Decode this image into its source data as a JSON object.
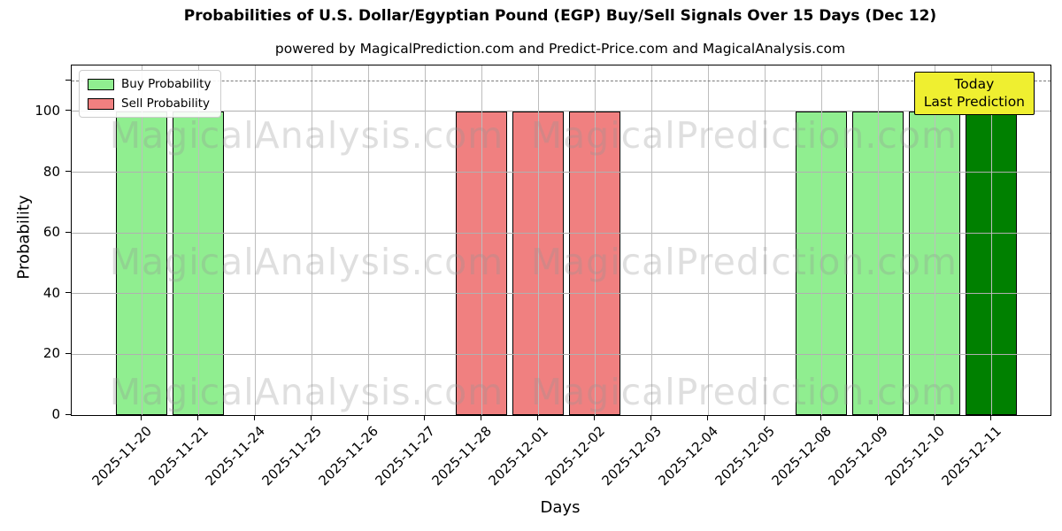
{
  "title": "Probabilities of U.S. Dollar/Egyptian Pound (EGP) Buy/Sell Signals Over 15 Days (Dec 12)",
  "subtitle": "powered by MagicalPrediction.com and Predict-Price.com and MagicalAnalysis.com",
  "axes": {
    "xlabel": "Days",
    "ylabel": "Probability",
    "yticks": [
      0,
      20,
      40,
      60,
      80,
      100
    ],
    "ylim": [
      0,
      115
    ],
    "grid": true,
    "threshold_dashed_line_y": 110
  },
  "legend": {
    "position": "upper-left",
    "items": [
      {
        "label": "Buy Probability",
        "color": "#90EE90"
      },
      {
        "label": "Sell Probability",
        "color": "#F08080"
      }
    ]
  },
  "annotation_box": {
    "lines": {
      "0": "Today",
      "1": "Last Prediction"
    },
    "bg_color": "#EFEF30",
    "border_color": "#000000",
    "position": "upper-right"
  },
  "watermarks": {
    "left_text": "MagicalAnalysis.com",
    "right_text": "MagicalPrediction.com",
    "rows": 3
  },
  "chart_data": {
    "type": "bar",
    "title": "Probabilities of U.S. Dollar/Egyptian Pound (EGP) Buy/Sell Signals Over 15 Days (Dec 12)",
    "xlabel": "Days",
    "ylabel": "Probability",
    "ylim": [
      0,
      115
    ],
    "bar_edge_color": "#000000",
    "categories": [
      "2025-11-20",
      "2025-11-21",
      "2025-11-24",
      "2025-11-25",
      "2025-11-26",
      "2025-11-27",
      "2025-11-28",
      "2025-12-01",
      "2025-12-02",
      "2025-12-03",
      "2025-12-04",
      "2025-12-05",
      "2025-12-08",
      "2025-12-09",
      "2025-12-10",
      "2025-12-11"
    ],
    "series": [
      {
        "name": "Buy Probability",
        "color": "#90EE90",
        "values": [
          100,
          100,
          0,
          0,
          0,
          0,
          0,
          0,
          0,
          0,
          0,
          0,
          100,
          100,
          100,
          0
        ]
      },
      {
        "name": "Sell Probability",
        "color": "#F08080",
        "values": [
          0,
          0,
          0,
          0,
          0,
          0,
          100,
          100,
          100,
          0,
          0,
          0,
          0,
          0,
          0,
          0
        ]
      },
      {
        "name": "Today Last Prediction",
        "color": "#008000",
        "values": [
          0,
          0,
          0,
          0,
          0,
          0,
          0,
          0,
          0,
          0,
          0,
          0,
          0,
          0,
          0,
          100
        ]
      }
    ]
  }
}
